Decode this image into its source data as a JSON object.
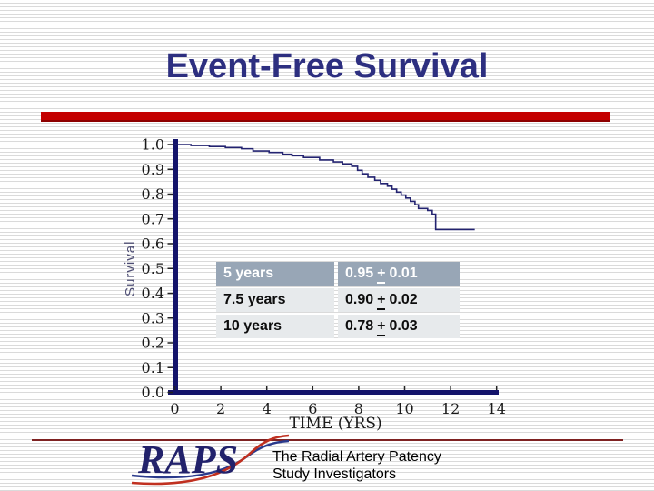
{
  "slide": {
    "title": "Event-Free Survival",
    "accent_bar_color": "#c40000",
    "stripe_color": "#dadada"
  },
  "chart_data": {
    "type": "line",
    "subtype": "step-survival-curve",
    "title": "",
    "xlabel": "TIME (YRS)",
    "ylabel": "Survival",
    "xlim": [
      0,
      14
    ],
    "ylim": [
      0.0,
      1.0
    ],
    "x_ticks": [
      0,
      2,
      4,
      6,
      8,
      10,
      12,
      14
    ],
    "y_ticks": [
      1.0,
      0.9,
      0.8,
      0.7,
      0.6,
      0.5,
      0.4,
      0.3,
      0.2,
      0.1,
      0.0
    ],
    "grid": false,
    "legend": "none",
    "axis_color": "#14146b",
    "series": [
      {
        "name": "event-free-survival",
        "color": "#232370",
        "points": [
          [
            0,
            1.0
          ],
          [
            0.7,
            0.996
          ],
          [
            1.5,
            0.992
          ],
          [
            2.2,
            0.988
          ],
          [
            2.9,
            0.983
          ],
          [
            3.4,
            0.974
          ],
          [
            4.1,
            0.968
          ],
          [
            4.7,
            0.961
          ],
          [
            5.1,
            0.955
          ],
          [
            5.6,
            0.948
          ],
          [
            6.3,
            0.938
          ],
          [
            6.9,
            0.93
          ],
          [
            7.3,
            0.922
          ],
          [
            7.7,
            0.912
          ],
          [
            7.95,
            0.896
          ],
          [
            8.15,
            0.882
          ],
          [
            8.4,
            0.868
          ],
          [
            8.7,
            0.856
          ],
          [
            8.95,
            0.843
          ],
          [
            9.25,
            0.832
          ],
          [
            9.45,
            0.82
          ],
          [
            9.65,
            0.808
          ],
          [
            9.85,
            0.796
          ],
          [
            10.05,
            0.784
          ],
          [
            10.25,
            0.771
          ],
          [
            10.45,
            0.757
          ],
          [
            10.6,
            0.742
          ],
          [
            11.0,
            0.734
          ],
          [
            11.2,
            0.719
          ],
          [
            11.35,
            0.657
          ],
          [
            13.05,
            0.657
          ]
        ]
      }
    ]
  },
  "table": {
    "header_bg": "#98a6b6",
    "row_bg": "#e7eaec",
    "rows": [
      {
        "label": "5 years",
        "value": "0.95",
        "plus": "+",
        "err": "0.01"
      },
      {
        "label": "7.5 years",
        "value": "0.90",
        "plus": "+",
        "err": "0.02"
      },
      {
        "label": "10 years",
        "value": "0.78",
        "plus": "+",
        "err": "0.03"
      }
    ]
  },
  "footer": {
    "logo_text": "RAPS",
    "caption_line1": "The Radial Artery Patency",
    "caption_line2": "Study Investigators"
  }
}
